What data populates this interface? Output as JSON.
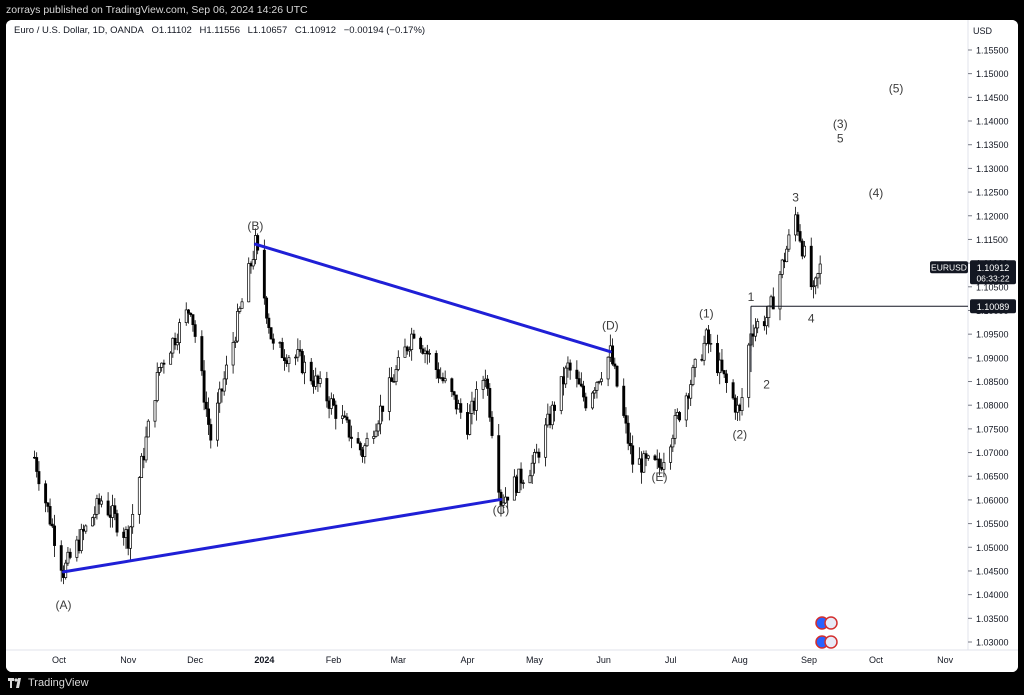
{
  "header": {
    "published": "zorrays published on TradingView.com, Sep 06, 2024 14:26 UTC"
  },
  "legend": {
    "symbol": "Euro / U.S. Dollar, 1D, OANDA",
    "open": "O1.11102",
    "high": "H1.11556",
    "low": "L1.10657",
    "close": "C1.10912",
    "change": "−0.00194 (−0.17%)"
  },
  "footer": {
    "brand": "TradingView"
  },
  "colors": {
    "trendline": "#1f1fd6",
    "candle": "#000000",
    "background": "#ffffff",
    "price_tag_bg": "#131722"
  },
  "chart_data": {
    "type": "candlestick",
    "title": "",
    "ylabel": "USD",
    "y_ticks": [
      "1.15500",
      "1.15000",
      "1.14500",
      "1.14000",
      "1.13500",
      "1.13000",
      "1.12500",
      "1.12000",
      "1.11500",
      "1.11000",
      "1.10500",
      "1.10000",
      "1.09500",
      "1.09000",
      "1.08500",
      "1.08000",
      "1.07500",
      "1.07000",
      "1.06500",
      "1.06000",
      "1.05500",
      "1.05000",
      "1.04500",
      "1.04000",
      "1.03500",
      "1.03000"
    ],
    "ylim": [
      1.028,
      1.16
    ],
    "x_ticks": [
      "Oct",
      "Nov",
      "Dec",
      "2024",
      "Feb",
      "Mar",
      "Apr",
      "May",
      "Jun",
      "Jul",
      "Aug",
      "Sep",
      "Oct",
      "Nov"
    ],
    "x_tick_dates": [
      "2023-10-01",
      "2023-11-01",
      "2023-12-01",
      "2024-01-01",
      "2024-02-01",
      "2024-03-01",
      "2024-04-01",
      "2024-05-01",
      "2024-06-01",
      "2024-07-01",
      "2024-08-01",
      "2024-09-01",
      "2024-10-01",
      "2024-11-01"
    ],
    "symbol_tag": "EURUSD",
    "last_price": "1.10912",
    "countdown": "06:33:22",
    "level_price": "1.10089",
    "level_value": 1.10089,
    "current_price_value": 1.10912,
    "price_path": [
      [
        "2023-09-20",
        1.069
      ],
      [
        "2023-10-03",
        1.045
      ],
      [
        "2023-10-20",
        1.06
      ],
      [
        "2023-11-01",
        1.052
      ],
      [
        "2023-11-15",
        1.088
      ],
      [
        "2023-11-29",
        1.101
      ],
      [
        "2023-12-08",
        1.073
      ],
      [
        "2023-12-28",
        1.114
      ],
      [
        "2024-01-05",
        1.092
      ],
      [
        "2024-01-16",
        1.09
      ],
      [
        "2024-01-30",
        1.081
      ],
      [
        "2024-02-14",
        1.07
      ],
      [
        "2024-03-08",
        1.096
      ],
      [
        "2024-03-20",
        1.086
      ],
      [
        "2024-04-01",
        1.076
      ],
      [
        "2024-04-09",
        1.087
      ],
      [
        "2024-04-16",
        1.06
      ],
      [
        "2024-05-01",
        1.068
      ],
      [
        "2024-05-16",
        1.088
      ],
      [
        "2024-05-24",
        1.081
      ],
      [
        "2024-06-04",
        1.091
      ],
      [
        "2024-06-14",
        1.068
      ],
      [
        "2024-06-26",
        1.067
      ],
      [
        "2024-07-17",
        1.094
      ],
      [
        "2024-08-01",
        1.078
      ],
      [
        "2024-08-06",
        1.096
      ],
      [
        "2024-08-14",
        1.099
      ],
      [
        "2024-08-26",
        1.12
      ],
      [
        "2024-09-03",
        1.103
      ],
      [
        "2024-09-06",
        1.109
      ]
    ],
    "trendlines": [
      {
        "from": [
          "2023-10-03",
          1.0448
        ],
        "to": [
          "2024-04-16",
          1.0601
        ]
      },
      {
        "from": [
          "2023-12-28",
          1.114
        ],
        "to": [
          "2024-06-04",
          1.0913
        ]
      }
    ],
    "annotations": [
      {
        "text": "(A)",
        "date": "2023-10-03",
        "price": 1.037
      },
      {
        "text": "(B)",
        "date": "2023-12-28",
        "price": 1.117
      },
      {
        "text": "(C)",
        "date": "2024-04-16",
        "price": 1.057
      },
      {
        "text": "(D)",
        "date": "2024-06-04",
        "price": 1.096
      },
      {
        "text": "(E)",
        "date": "2024-06-26",
        "price": 1.064
      },
      {
        "text": "(1)",
        "date": "2024-07-17",
        "price": 1.0985
      },
      {
        "text": "(2)",
        "date": "2024-08-01",
        "price": 1.073
      },
      {
        "text": "1",
        "date": "2024-08-06",
        "price": 1.102
      },
      {
        "text": "2",
        "date": "2024-08-13",
        "price": 1.0835
      },
      {
        "text": "3",
        "date": "2024-08-26",
        "price": 1.123
      },
      {
        "text": "4",
        "date": "2024-09-02",
        "price": 1.0975
      },
      {
        "text": "(3)",
        "date": "2024-09-15",
        "price": 1.1385
      },
      {
        "text": "5",
        "date": "2024-09-15",
        "price": 1.1355
      },
      {
        "text": "(4)",
        "date": "2024-10-01",
        "price": 1.124
      },
      {
        "text": "(5)",
        "date": "2024-10-10",
        "price": 1.146
      }
    ],
    "grid": false,
    "legend_position": "top-left"
  }
}
